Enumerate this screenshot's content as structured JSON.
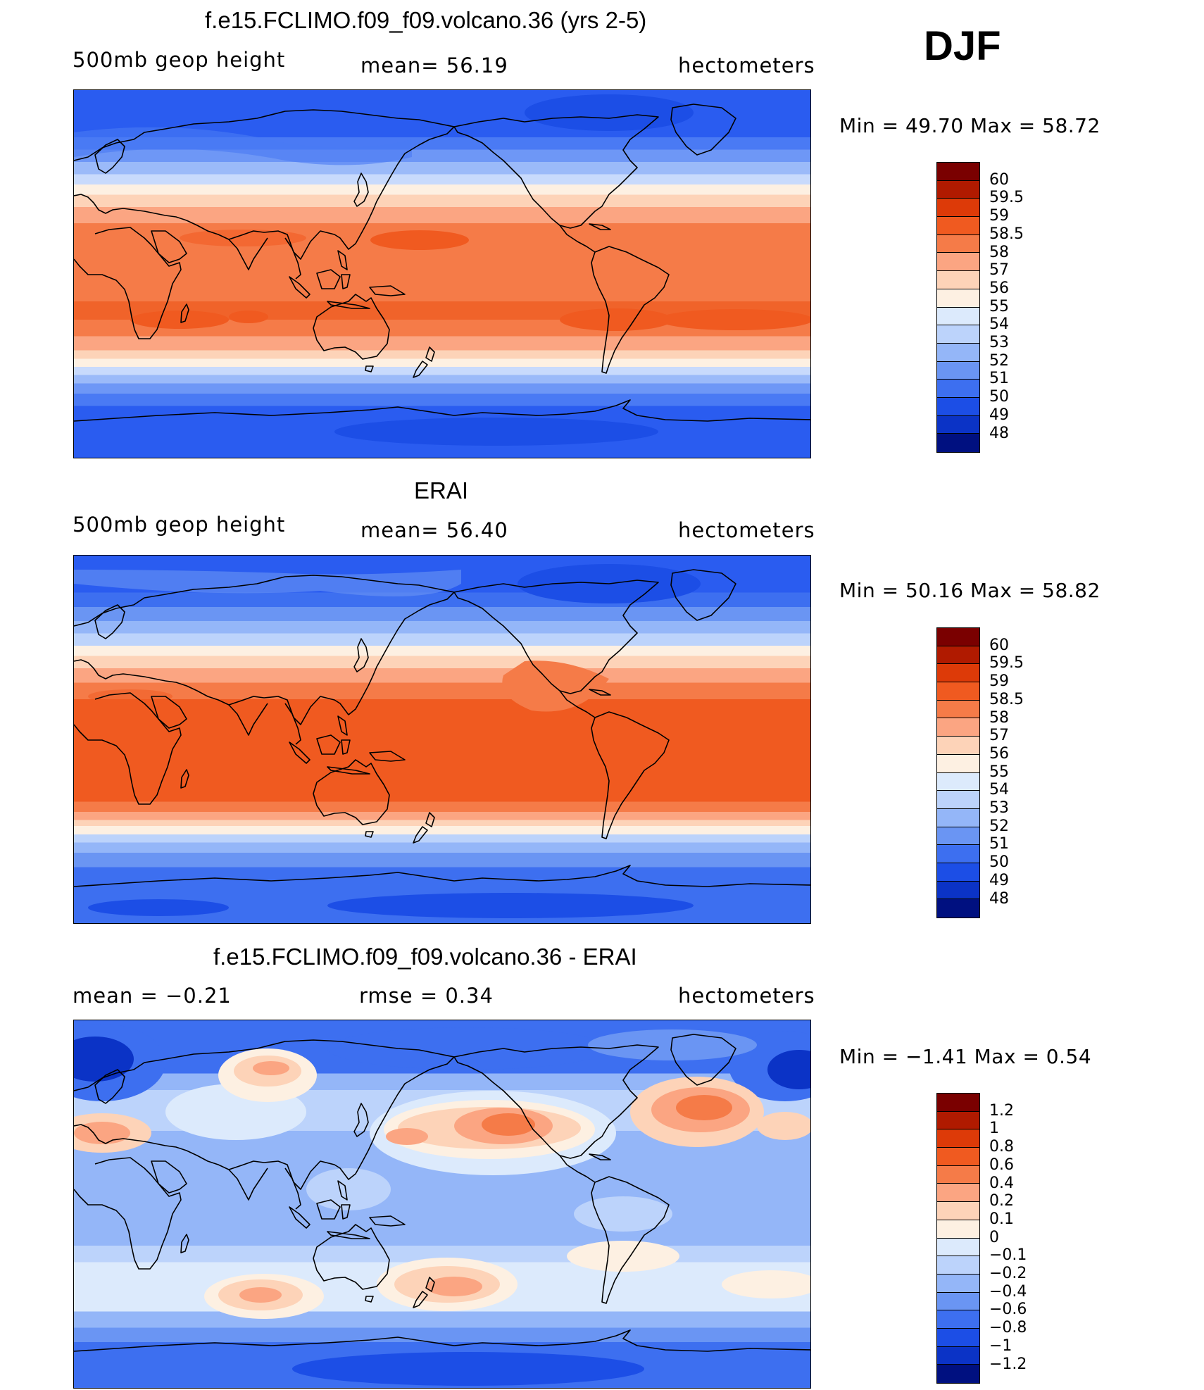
{
  "season": "DJF",
  "panels": [
    {
      "title": "f.e15.FCLIMO.f09_f09.volcano.36 (yrs 2-5)",
      "left_label": "500mb  geop  height",
      "center_label": "mean=   56.19",
      "units": "hectometers",
      "minmax": "Min  =    49.70  Max  =    58.72",
      "colorbar": {
        "labels": [
          "60",
          "59.5",
          "59",
          "58.5",
          "58",
          "57",
          "56",
          "55",
          "54",
          "53",
          "52",
          "51",
          "50",
          "49",
          "48"
        ],
        "colors": [
          "#7a0000",
          "#b01a00",
          "#dd3a08",
          "#f05a20",
          "#f57b48",
          "#fba582",
          "#fdd3b8",
          "#fdf0e2",
          "#dceafc",
          "#bcd3fb",
          "#94b6f8",
          "#6a95f3",
          "#3d6ff0",
          "#1c4ee6",
          "#0b33c6",
          "#001080"
        ]
      },
      "bands": [
        {
          "lat": 90,
          "color": "#2a5cf0"
        },
        {
          "lat": 74,
          "color": "#2a5cf0"
        },
        {
          "lat": 67,
          "color": "#4a7af4"
        },
        {
          "lat": 61,
          "color": "#6e97f6"
        },
        {
          "lat": 55,
          "color": "#9bbaf9"
        },
        {
          "lat": 49,
          "color": "#c8dafc"
        },
        {
          "lat": 44,
          "color": "#fdf0e2"
        },
        {
          "lat": 39,
          "color": "#fdd3b8"
        },
        {
          "lat": 33,
          "color": "#fba582"
        },
        {
          "lat": 25,
          "color": "#f57b48"
        },
        {
          "lat": -8,
          "color": "#f57b48"
        },
        {
          "lat": -13,
          "color": "#f0632a"
        },
        {
          "lat": -22,
          "color": "#f57b48"
        },
        {
          "lat": -30,
          "color": "#fba582"
        },
        {
          "lat": -37,
          "color": "#fdd3b8"
        },
        {
          "lat": -41,
          "color": "#fdf0e2"
        },
        {
          "lat": -45,
          "color": "#c8dafc"
        },
        {
          "lat": -49,
          "color": "#9bbaf9"
        },
        {
          "lat": -53,
          "color": "#6e97f6"
        },
        {
          "lat": -58,
          "color": "#4a7af4"
        },
        {
          "lat": -64,
          "color": "#2a5cf0"
        },
        {
          "lat": -90,
          "color": "#2a5cf0"
        }
      ]
    },
    {
      "title": "ERAI",
      "left_label": "500mb  geop  height",
      "center_label": "mean=   56.40",
      "units": "hectometers",
      "minmax": "Min  =    50.16  Max  =    58.82",
      "colorbar": {
        "labels": [
          "60",
          "59.5",
          "59",
          "58.5",
          "58",
          "57",
          "56",
          "55",
          "54",
          "53",
          "52",
          "51",
          "50",
          "49",
          "48"
        ],
        "colors": [
          "#7a0000",
          "#b01a00",
          "#dd3a08",
          "#f05a20",
          "#f57b48",
          "#fba582",
          "#fdd3b8",
          "#fdf0e2",
          "#dceafc",
          "#bcd3fb",
          "#94b6f8",
          "#6a95f3",
          "#3d6ff0",
          "#1c4ee6",
          "#0b33c6",
          "#001080"
        ]
      },
      "bands": [
        {
          "lat": 90,
          "color": "#2a5cf0"
        },
        {
          "lat": 72,
          "color": "#3d6ff0"
        },
        {
          "lat": 65,
          "color": "#6a95f3"
        },
        {
          "lat": 58,
          "color": "#94b6f8"
        },
        {
          "lat": 52,
          "color": "#bcd3fb"
        },
        {
          "lat": 46,
          "color": "#fdf0e2"
        },
        {
          "lat": 41,
          "color": "#fdd3b8"
        },
        {
          "lat": 35,
          "color": "#fba582"
        },
        {
          "lat": 28,
          "color": "#f57b48"
        },
        {
          "lat": 20,
          "color": "#f05a20"
        },
        {
          "lat": -25,
          "color": "#f05a20"
        },
        {
          "lat": -30,
          "color": "#f57b48"
        },
        {
          "lat": -35,
          "color": "#fba582"
        },
        {
          "lat": -39,
          "color": "#fdd3b8"
        },
        {
          "lat": -42,
          "color": "#fdf0e2"
        },
        {
          "lat": -46,
          "color": "#bcd3fb"
        },
        {
          "lat": -50,
          "color": "#94b6f8"
        },
        {
          "lat": -55,
          "color": "#6a95f3"
        },
        {
          "lat": -62,
          "color": "#3d6ff0"
        },
        {
          "lat": -90,
          "color": "#2a5cf0"
        }
      ]
    },
    {
      "title": "f.e15.FCLIMO.f09_f09.volcano.36 - ERAI",
      "left_label": "mean  =    −0.21",
      "center_label": "rmse  =     0.34",
      "units": "hectometers",
      "minmax": "Min  =    −1.41  Max  =      0.54",
      "colorbar": {
        "labels": [
          "1.2",
          "1",
          "0.8",
          "0.6",
          "0.4",
          "0.2",
          "0.1",
          "0",
          "−0.1",
          "−0.2",
          "−0.4",
          "−0.6",
          "−0.8",
          "−1",
          "−1.2"
        ],
        "colors": [
          "#7a0000",
          "#b01a00",
          "#dd3a08",
          "#f05a20",
          "#f57b48",
          "#fba582",
          "#fdd3b8",
          "#fdf0e2",
          "#dceafc",
          "#bcd3fb",
          "#94b6f8",
          "#6a95f3",
          "#3d6ff0",
          "#1c4ee6",
          "#0b33c6",
          "#001080"
        ]
      },
      "bands": [
        {
          "lat": 90,
          "color": "#3d6ff0"
        },
        {
          "lat": 72,
          "color": "#3d6ff0"
        },
        {
          "lat": 64,
          "color": "#94b6f8"
        },
        {
          "lat": 56,
          "color": "#bcd3fb"
        },
        {
          "lat": 44,
          "color": "#bcd3fb"
        },
        {
          "lat": 36,
          "color": "#94b6f8"
        },
        {
          "lat": -12,
          "color": "#94b6f8"
        },
        {
          "lat": -20,
          "color": "#bcd3fb"
        },
        {
          "lat": -28,
          "color": "#dceafc"
        },
        {
          "lat": -44,
          "color": "#dceafc"
        },
        {
          "lat": -52,
          "color": "#94b6f8"
        },
        {
          "lat": -60,
          "color": "#6a95f3"
        },
        {
          "lat": -67,
          "color": "#3d6ff0"
        },
        {
          "lat": -90,
          "color": "#3d6ff0"
        }
      ]
    }
  ]
}
